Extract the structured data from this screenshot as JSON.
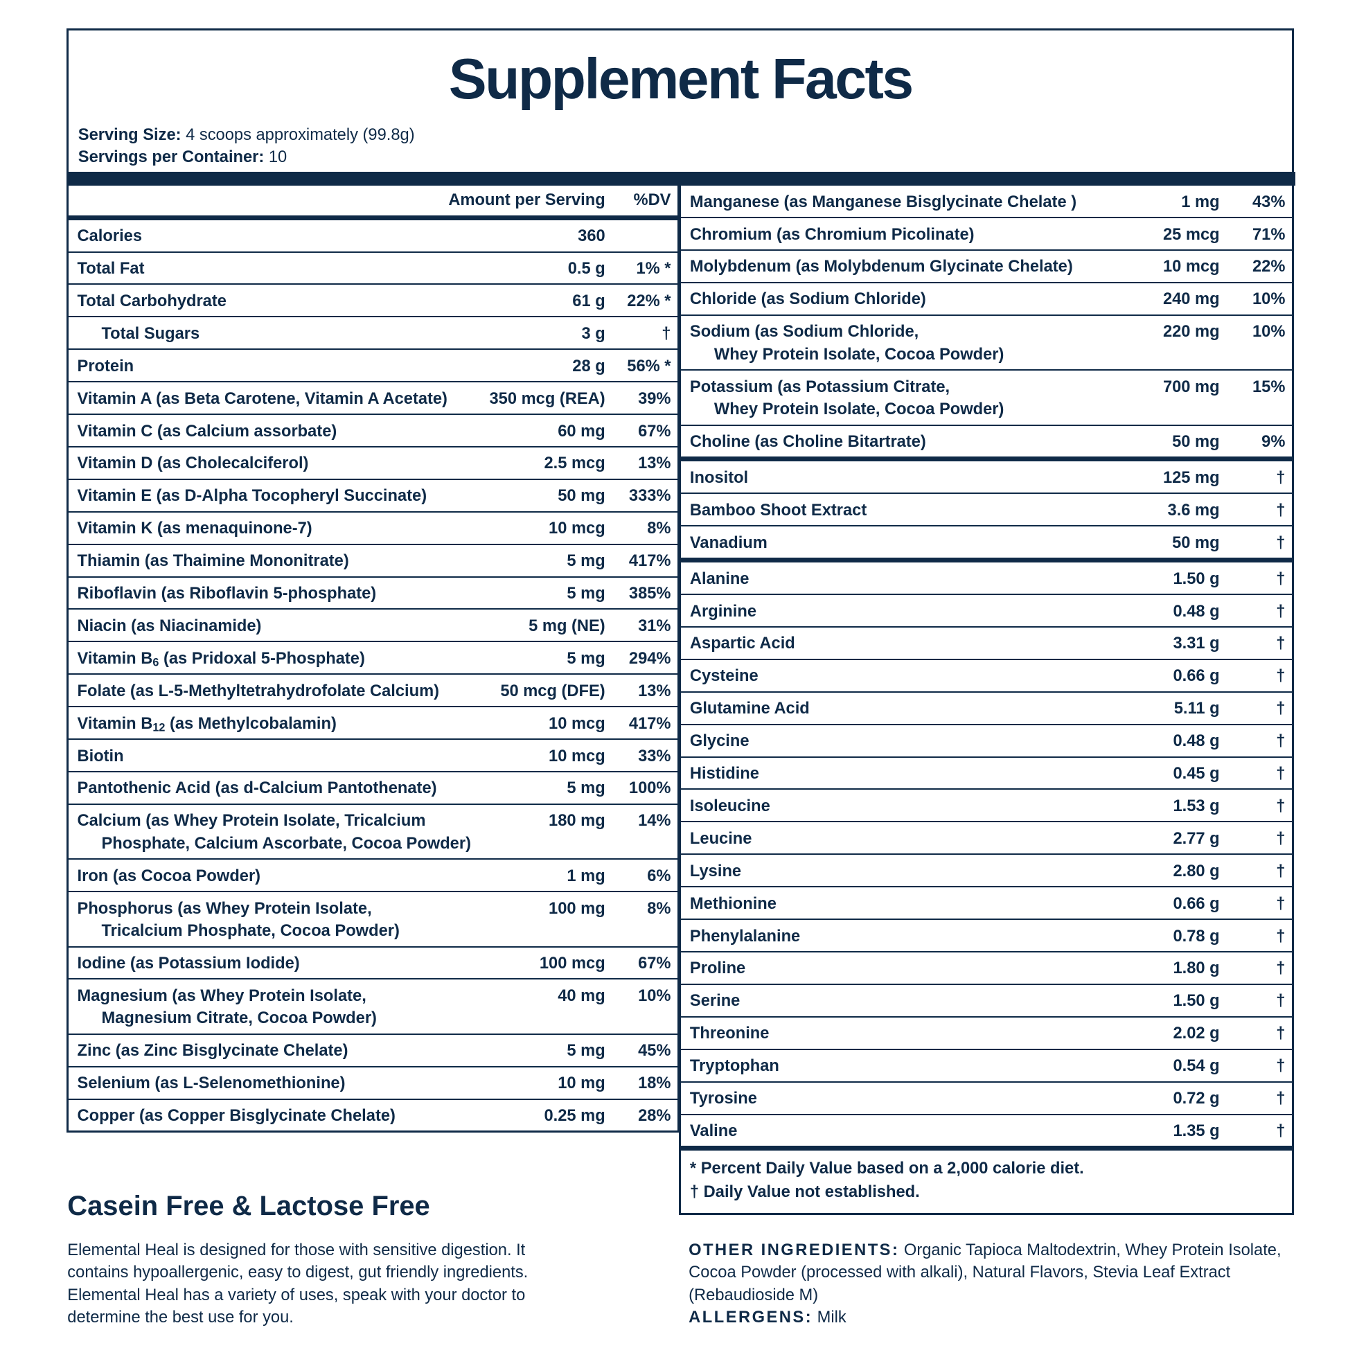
{
  "title": "Supplement Facts",
  "serving_size_label": "Serving Size:",
  "serving_size_value": " 4 scoops approximately (99.8g)",
  "servings_label": "Servings per Container:",
  "servings_value": " 10",
  "header": {
    "amount": "Amount per Serving",
    "dv": "%DV"
  },
  "left_rows": [
    {
      "name": "Calories",
      "amt": "360",
      "dv": ""
    },
    {
      "name": "Total Fat",
      "amt": "0.5 g",
      "dv": "1% *"
    },
    {
      "name": "Total Carbohydrate",
      "amt": "61 g",
      "dv": "22% *"
    },
    {
      "name": "Total Sugars",
      "amt": "3 g",
      "dv": "†",
      "indent": true
    },
    {
      "name": "Protein",
      "amt": "28 g",
      "dv": "56% *"
    },
    {
      "name": "Vitamin A (as Beta Carotene, Vitamin A Acetate)",
      "amt": "350 mcg (REA)",
      "dv": "39%"
    },
    {
      "name": "Vitamin C (as Calcium assorbate)",
      "amt": "60 mg",
      "dv": "67%"
    },
    {
      "name": "Vitamin D (as Cholecalciferol)",
      "amt": "2.5 mcg",
      "dv": "13%"
    },
    {
      "name": "Vitamin E (as D-Alpha Tocopheryl Succinate)",
      "amt": "50 mg",
      "dv": "333%"
    },
    {
      "name": "Vitamin K (as menaquinone-7)",
      "amt": "10 mcg",
      "dv": "8%"
    },
    {
      "name": "Thiamin (as Thaimine Mononitrate)",
      "amt": "5 mg",
      "dv": "417%"
    },
    {
      "name": "Riboflavin (as Riboflavin 5-phosphate)",
      "amt": "5 mg",
      "dv": "385%"
    },
    {
      "name": "Niacin (as Niacinamide)",
      "amt": "5 mg (NE)",
      "dv": "31%"
    },
    {
      "name": "Vitamin B",
      "sub": "6",
      "rest": " (as Pridoxal 5-Phosphate)",
      "amt": "5 mg",
      "dv": "294%"
    },
    {
      "name": "Folate (as L-5-Methyltetrahydrofolate Calcium)",
      "amt": "50 mcg (DFE)",
      "dv": "13%"
    },
    {
      "name": "Vitamin B",
      "sub": "12",
      "rest": " (as Methylcobalamin)",
      "amt": "10 mcg",
      "dv": "417%"
    },
    {
      "name": "Biotin",
      "amt": "10 mcg",
      "dv": "33%"
    },
    {
      "name": "Pantothenic Acid (as d-Calcium Pantothenate)",
      "amt": "5 mg",
      "dv": "100%"
    },
    {
      "name": "Calcium (as Whey Protein Isolate, Tricalcium",
      "line2": "Phosphate,  Calcium Ascorbate, Cocoa Powder)",
      "amt": "180 mg",
      "dv": "14%"
    },
    {
      "name": "Iron (as Cocoa Powder)",
      "amt": "1 mg",
      "dv": "6%"
    },
    {
      "name": "Phosphorus (as Whey Protein Isolate,",
      "line2": "Tricalcium Phosphate, Cocoa Powder)",
      "amt": "100 mg",
      "dv": "8%"
    },
    {
      "name": "Iodine (as Potassium Iodide)",
      "amt": "100 mcg",
      "dv": "67%"
    },
    {
      "name": "Magnesium (as Whey Protein Isolate,",
      "line2": "Magnesium Citrate, Cocoa Powder)",
      "amt": "40 mg",
      "dv": "10%"
    },
    {
      "name": "Zinc (as Zinc Bisglycinate Chelate)",
      "amt": "5 mg",
      "dv": "45%"
    },
    {
      "name": "Selenium (as L-Selenomethionine)",
      "amt": "10 mg",
      "dv": "18%"
    },
    {
      "name": "Copper (as Copper Bisglycinate Chelate)",
      "amt": "0.25 mg",
      "dv": "28%"
    }
  ],
  "right_groups": [
    [
      {
        "name": "Manganese (as Manganese Bisglycinate Chelate )",
        "amt": "1 mg",
        "dv": "43%"
      },
      {
        "name": "Chromium (as Chromium Picolinate)",
        "amt": "25 mcg",
        "dv": "71%"
      },
      {
        "name": "Molybdenum (as Molybdenum Glycinate Chelate)",
        "amt": "10 mcg",
        "dv": "22%"
      },
      {
        "name": "Chloride (as Sodium Chloride)",
        "amt": "240 mg",
        "dv": "10%"
      },
      {
        "name": "Sodium (as Sodium Chloride,",
        "line2": "Whey Protein Isolate, Cocoa Powder)",
        "amt": "220 mg",
        "dv": "10%"
      },
      {
        "name": "Potassium (as Potassium Citrate,",
        "line2": "Whey Protein Isolate, Cocoa Powder)",
        "amt": "700 mg",
        "dv": "15%"
      },
      {
        "name": "Choline (as Choline Bitartrate)",
        "amt": "50 mg",
        "dv": "9%"
      }
    ],
    [
      {
        "name": "Inositol",
        "amt": "125 mg",
        "dv": "†"
      },
      {
        "name": "Bamboo Shoot Extract",
        "amt": "3.6 mg",
        "dv": "†"
      },
      {
        "name": "Vanadium",
        "amt": "50 mg",
        "dv": "†"
      }
    ],
    [
      {
        "name": "Alanine",
        "amt": "1.50 g",
        "dv": "†"
      },
      {
        "name": "Arginine",
        "amt": "0.48 g",
        "dv": "†"
      },
      {
        "name": "Aspartic Acid",
        "amt": "3.31 g",
        "dv": "†"
      },
      {
        "name": "Cysteine",
        "amt": "0.66 g",
        "dv": "†"
      },
      {
        "name": "Glutamine Acid",
        "amt": "5.11 g",
        "dv": "†"
      },
      {
        "name": "Glycine",
        "amt": "0.48 g",
        "dv": "†"
      },
      {
        "name": "Histidine",
        "amt": "0.45 g",
        "dv": "†"
      },
      {
        "name": "Isoleucine",
        "amt": "1.53 g",
        "dv": "†"
      },
      {
        "name": "Leucine",
        "amt": "2.77 g",
        "dv": "†"
      },
      {
        "name": "Lysine",
        "amt": "2.80 g",
        "dv": "†"
      },
      {
        "name": "Methionine",
        "amt": "0.66 g",
        "dv": "†"
      },
      {
        "name": "Phenylalanine",
        "amt": "0.78 g",
        "dv": "†"
      },
      {
        "name": "Proline",
        "amt": "1.80 g",
        "dv": "†"
      },
      {
        "name": "Serine",
        "amt": "1.50 g",
        "dv": "†"
      },
      {
        "name": "Threonine",
        "amt": "2.02 g",
        "dv": "†"
      },
      {
        "name": "Tryptophan",
        "amt": "0.54 g",
        "dv": "†"
      },
      {
        "name": "Tyrosine",
        "amt": "0.72 g",
        "dv": "†"
      },
      {
        "name": "Valine",
        "amt": "1.35 g",
        "dv": "†"
      }
    ]
  ],
  "footnotes": [
    "* Percent Daily Value based on a 2,000 calorie diet.",
    "† Daily Value not established."
  ],
  "casein_heading": "Casein Free & Lactose Free",
  "description": "Elemental Heal is designed for those with sensitive digestion. It contains hypoallergenic, easy to digest, gut friendly ingredients. Elemental Heal has a variety of uses, speak with your doctor to determine the best use for you.",
  "other_label": "OTHER INGREDIENTS:",
  "other_value": " Organic Tapioca Maltodextrin, Whey Protein Isolate, Cocoa Powder (processed with alkali), Natural Flavors, Stevia Leaf Extract (Rebaudioside M)",
  "allergens_label": "ALLERGENS:",
  "allergens_value": " Milk",
  "colors": {
    "navy": "#0f2a47"
  }
}
